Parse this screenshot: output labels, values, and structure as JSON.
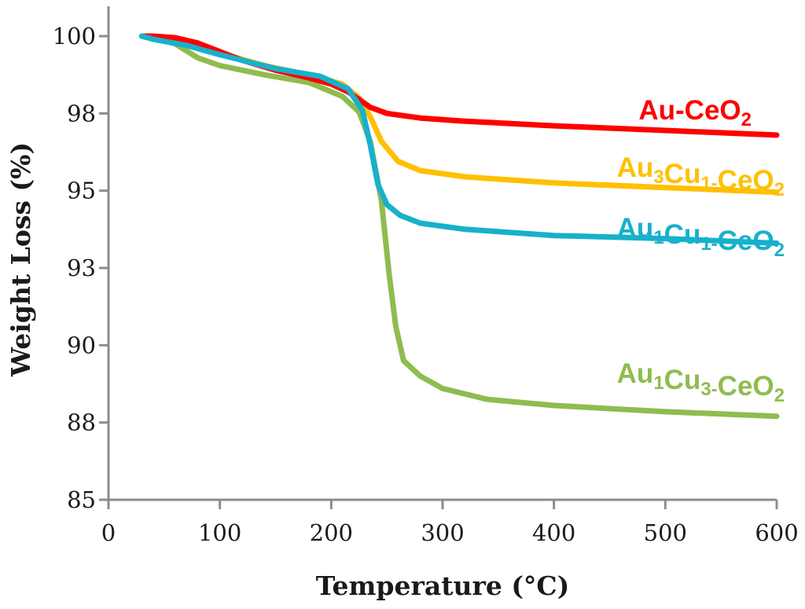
{
  "chart_data": {
    "type": "line",
    "title": "",
    "xlabel": "Temperature (°C)",
    "ylabel": "Weight Loss (%)",
    "xlim": [
      0,
      600
    ],
    "ylim": [
      85,
      100
    ],
    "x_ticks": [
      0,
      100,
      200,
      300,
      400,
      500,
      600
    ],
    "y_ticks": [
      {
        "value": 85,
        "label": "85"
      },
      {
        "value": 87.5,
        "label": "88"
      },
      {
        "value": 90,
        "label": "90"
      },
      {
        "value": 92.5,
        "label": "93"
      },
      {
        "value": 95,
        "label": "95"
      },
      {
        "value": 97.5,
        "label": "98"
      },
      {
        "value": 100,
        "label": "100"
      }
    ],
    "grid": false,
    "legend": "inline labels at right of each line",
    "series": [
      {
        "name": "Au-CeO2",
        "label_parts": [
          [
            "Au-CeO",
            ""
          ],
          [
            "2",
            "sub"
          ]
        ],
        "color": "#ff0000",
        "points": [
          [
            30,
            100
          ],
          [
            40,
            100
          ],
          [
            60,
            99.95
          ],
          [
            80,
            99.78
          ],
          [
            100,
            99.5
          ],
          [
            120,
            99.22
          ],
          [
            150,
            98.9
          ],
          [
            180,
            98.65
          ],
          [
            200,
            98.45
          ],
          [
            215,
            98.2
          ],
          [
            225,
            97.95
          ],
          [
            235,
            97.7
          ],
          [
            250,
            97.5
          ],
          [
            280,
            97.35
          ],
          [
            320,
            97.25
          ],
          [
            400,
            97.1
          ],
          [
            500,
            96.95
          ],
          [
            600,
            96.8
          ]
        ]
      },
      {
        "name": "Au3Cu1-CeO2",
        "label_parts": [
          [
            "Au",
            ""
          ],
          [
            "3",
            "sub"
          ],
          [
            "Cu",
            ""
          ],
          [
            "1-",
            "sub"
          ],
          [
            "CeO",
            ""
          ],
          [
            "2",
            "sub"
          ]
        ],
        "color": "#ffc000",
        "points": [
          [
            30,
            100
          ],
          [
            45,
            99.95
          ],
          [
            70,
            99.8
          ],
          [
            100,
            99.45
          ],
          [
            140,
            99.05
          ],
          [
            180,
            98.75
          ],
          [
            210,
            98.45
          ],
          [
            225,
            98.0
          ],
          [
            235,
            97.4
          ],
          [
            245,
            96.6
          ],
          [
            260,
            95.95
          ],
          [
            280,
            95.65
          ],
          [
            320,
            95.45
          ],
          [
            400,
            95.25
          ],
          [
            500,
            95.1
          ],
          [
            600,
            94.95
          ]
        ]
      },
      {
        "name": "Au1Cu1-CeO2",
        "label_parts": [
          [
            "Au",
            ""
          ],
          [
            "1",
            "sub"
          ],
          [
            "Cu",
            ""
          ],
          [
            "1-",
            "sub"
          ],
          [
            "CeO",
            ""
          ],
          [
            "2",
            "sub"
          ]
        ],
        "color": "#17b1cc",
        "points": [
          [
            30,
            100
          ],
          [
            40,
            99.9
          ],
          [
            70,
            99.7
          ],
          [
            100,
            99.4
          ],
          [
            150,
            98.95
          ],
          [
            190,
            98.7
          ],
          [
            215,
            98.3
          ],
          [
            228,
            97.6
          ],
          [
            235,
            96.5
          ],
          [
            242,
            95.2
          ],
          [
            250,
            94.55
          ],
          [
            262,
            94.2
          ],
          [
            280,
            93.95
          ],
          [
            320,
            93.75
          ],
          [
            400,
            93.55
          ],
          [
            500,
            93.45
          ],
          [
            600,
            93.3
          ]
        ]
      },
      {
        "name": "Au1Cu3-CeO2",
        "label_parts": [
          [
            "Au",
            ""
          ],
          [
            "1",
            "sub"
          ],
          [
            "Cu",
            ""
          ],
          [
            "3-",
            "sub"
          ],
          [
            "CeO",
            ""
          ],
          [
            "2",
            "sub"
          ]
        ],
        "color": "#8fbc4f",
        "points": [
          [
            30,
            100
          ],
          [
            40,
            99.95
          ],
          [
            60,
            99.75
          ],
          [
            80,
            99.3
          ],
          [
            100,
            99.05
          ],
          [
            140,
            98.75
          ],
          [
            180,
            98.5
          ],
          [
            210,
            98.05
          ],
          [
            225,
            97.55
          ],
          [
            235,
            96.6
          ],
          [
            245,
            94.7
          ],
          [
            252,
            92.3
          ],
          [
            258,
            90.6
          ],
          [
            265,
            89.5
          ],
          [
            280,
            89.0
          ],
          [
            300,
            88.6
          ],
          [
            340,
            88.25
          ],
          [
            400,
            88.05
          ],
          [
            500,
            87.85
          ],
          [
            600,
            87.7
          ]
        ]
      }
    ]
  }
}
